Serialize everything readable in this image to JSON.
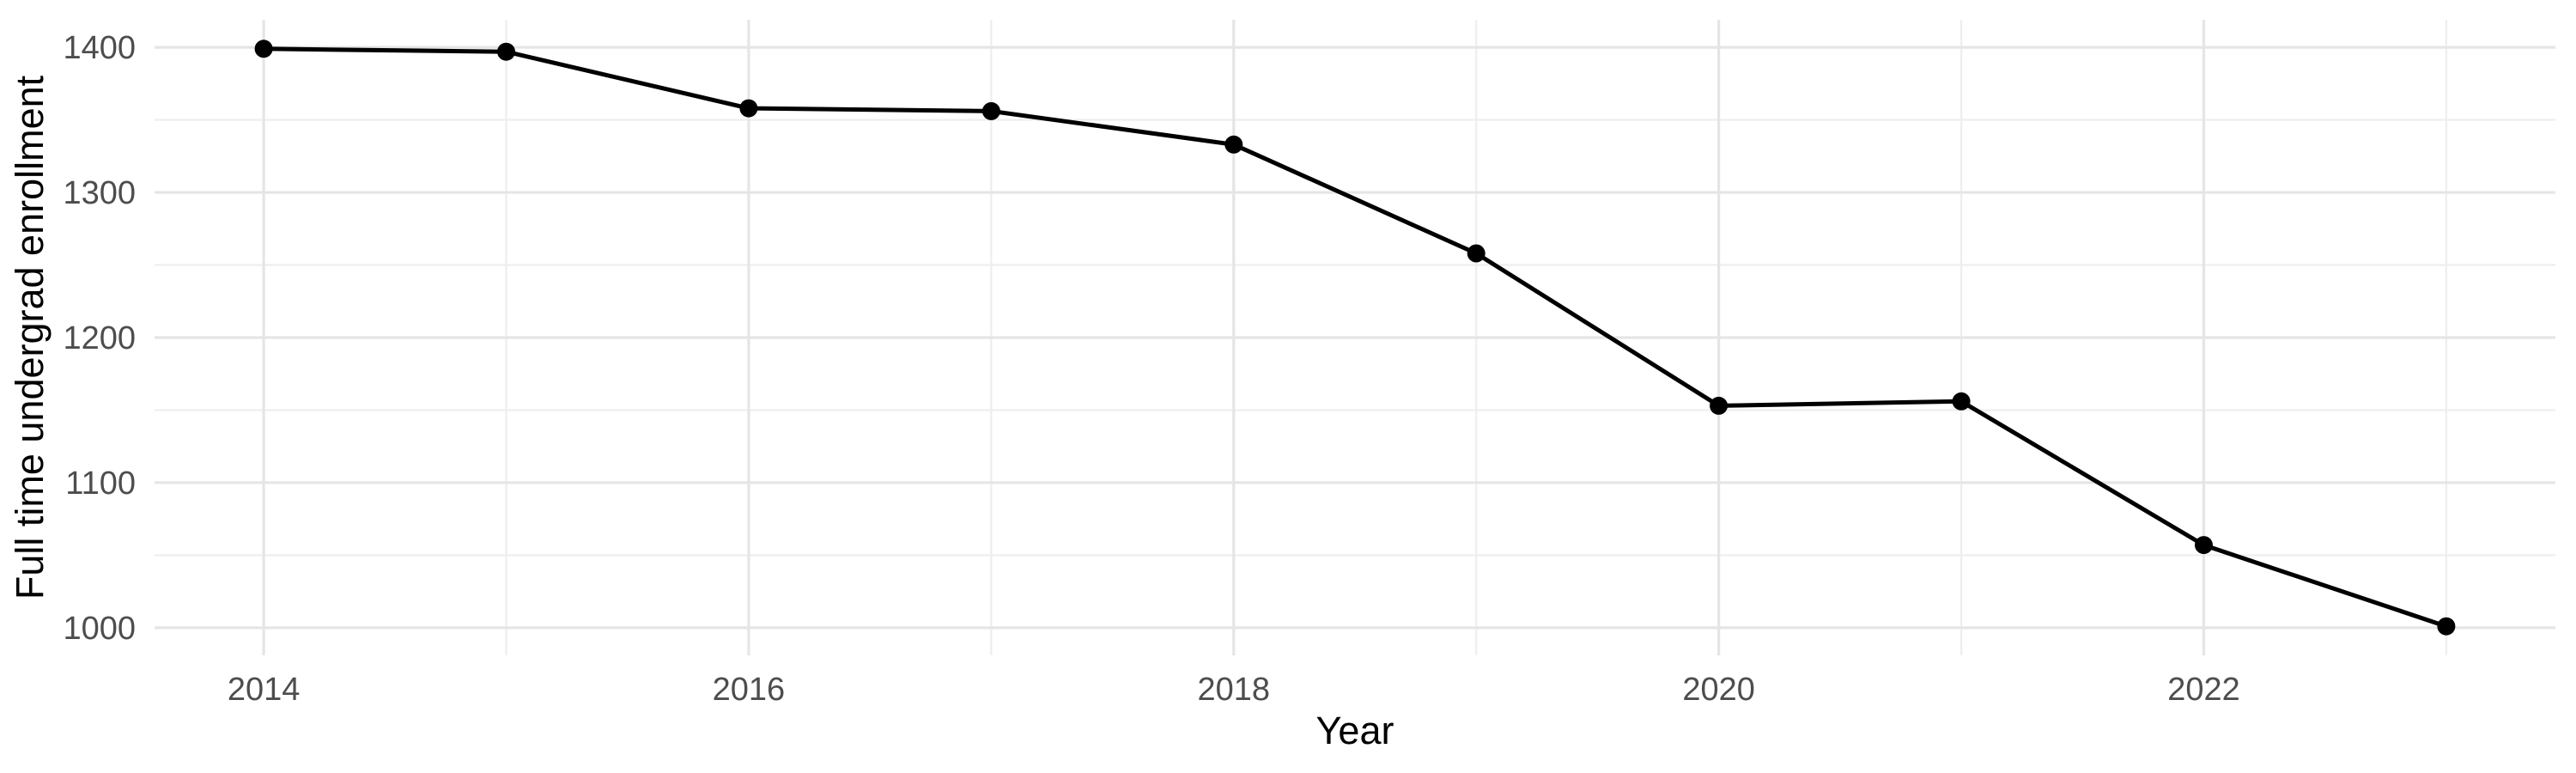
{
  "chart_data": {
    "type": "line",
    "title": "",
    "xlabel": "Year",
    "ylabel": "Full time undergrad enrollment",
    "x": [
      2014,
      2015,
      2016,
      2017,
      2018,
      2019,
      2020,
      2021,
      2022,
      2023
    ],
    "series": [
      {
        "name": "Full time undergrad enrollment",
        "values": [
          1399,
          1397,
          1358,
          1356,
          1333,
          1258,
          1153,
          1156,
          1057,
          1001
        ]
      }
    ],
    "x_ticks": {
      "values": [
        2014,
        2016,
        2018,
        2020,
        2022
      ],
      "labels": [
        "2014",
        "2016",
        "2018",
        "2020",
        "2022"
      ]
    },
    "x_minor_ticks": [
      2015,
      2017,
      2019,
      2021,
      2023
    ],
    "y_ticks": {
      "values": [
        1000,
        1100,
        1200,
        1300,
        1400
      ],
      "labels": [
        "1000",
        "1100",
        "1200",
        "1300",
        "1400"
      ]
    },
    "y_minor_ticks": [
      1050,
      1150,
      1250,
      1350
    ],
    "xlim": [
      2013.55,
      2023.45
    ],
    "ylim": [
      981,
      1419
    ],
    "grid": "major+minor",
    "legend": "none",
    "marker": "filled-circle",
    "colors": {
      "line": "#000000",
      "point": "#000000",
      "grid_major": "#E5E5E5",
      "grid_minor": "#EEEEEE",
      "tick_text": "#4D4D4D",
      "axis_title": "#000000",
      "background": "#FFFFFF"
    }
  }
}
